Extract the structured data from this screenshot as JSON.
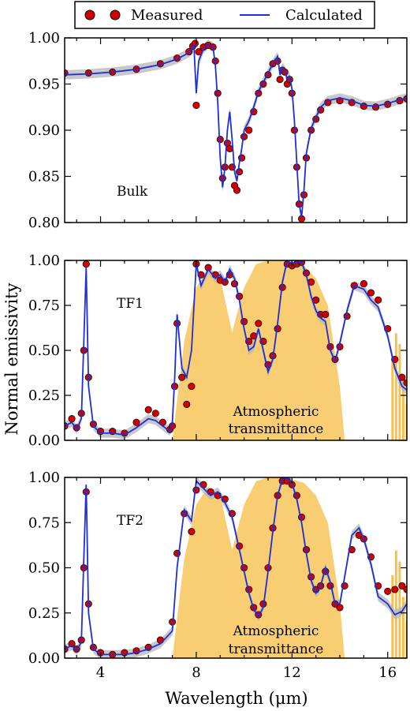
{
  "colors": {
    "measured": "#d40000",
    "calculated": "#1f2fd6",
    "uncertainty": "#b5b5b5",
    "atmosphere": "#f7c04f"
  },
  "legend": {
    "measured": "Measured",
    "calculated": "Calculated"
  },
  "ylabel": "Normal emissivity",
  "xlabel": "Wavelength (μm)",
  "x_ticks": [
    "4",
    "8",
    "12",
    "16"
  ],
  "chart_data": [
    {
      "type": "line",
      "panel": "Bulk",
      "xlim": [
        2.5,
        16.8
      ],
      "ylim": [
        0.8,
        1.0
      ],
      "yticks": [
        "1.00",
        "0.95",
        "0.90",
        "0.85",
        "0.80"
      ],
      "annotation": "",
      "series": [
        {
          "name": "Measured",
          "style": "markers",
          "x": [
            2.5,
            3.5,
            4.5,
            5.5,
            6.5,
            7.2,
            7.7,
            7.85,
            7.95,
            8.0,
            8.1,
            8.3,
            8.5,
            8.7,
            8.8,
            8.9,
            9.0,
            9.1,
            9.2,
            9.3,
            9.4,
            9.5,
            9.6,
            9.7,
            9.8,
            9.9,
            10.0,
            10.2,
            10.4,
            10.6,
            10.8,
            11.0,
            11.2,
            11.4,
            11.5,
            11.6,
            11.7,
            11.8,
            11.9,
            12.0,
            12.1,
            12.2,
            12.3,
            12.4,
            12.5,
            12.6,
            12.8,
            13.0,
            13.2,
            13.5,
            14.0,
            14.5,
            15.0,
            15.5,
            16.0,
            16.5,
            16.8
          ],
          "y": [
            0.962,
            0.962,
            0.963,
            0.966,
            0.972,
            0.978,
            0.985,
            0.991,
            0.994,
            0.927,
            0.985,
            0.99,
            0.992,
            0.99,
            0.975,
            0.94,
            0.89,
            0.848,
            0.86,
            0.886,
            0.88,
            0.86,
            0.84,
            0.835,
            0.855,
            0.87,
            0.893,
            0.9,
            0.92,
            0.94,
            0.95,
            0.96,
            0.972,
            0.975,
            0.955,
            0.965,
            0.963,
            0.95,
            0.955,
            0.94,
            0.9,
            0.86,
            0.82,
            0.804,
            0.83,
            0.87,
            0.9,
            0.912,
            0.922,
            0.93,
            0.932,
            0.93,
            0.926,
            0.925,
            0.928,
            0.932,
            0.934
          ]
        },
        {
          "name": "Calculated",
          "style": "line",
          "x": [
            2.5,
            3.5,
            4.5,
            5.5,
            6.5,
            7.2,
            7.7,
            7.9,
            8.0,
            8.1,
            8.3,
            8.5,
            8.7,
            8.8,
            8.9,
            9.0,
            9.1,
            9.2,
            9.3,
            9.4,
            9.5,
            9.6,
            9.7,
            9.8,
            9.9,
            10.0,
            10.2,
            10.4,
            10.6,
            10.8,
            11.0,
            11.2,
            11.4,
            11.5,
            11.6,
            11.7,
            11.8,
            11.9,
            12.0,
            12.1,
            12.2,
            12.3,
            12.4,
            12.5,
            12.6,
            12.8,
            13.0,
            13.2,
            13.5,
            14.0,
            14.5,
            15.0,
            15.5,
            16.0,
            16.5,
            16.8
          ],
          "y": [
            0.96,
            0.961,
            0.963,
            0.966,
            0.971,
            0.977,
            0.984,
            0.992,
            0.94,
            0.975,
            0.988,
            0.993,
            0.99,
            0.97,
            0.93,
            0.87,
            0.838,
            0.86,
            0.9,
            0.92,
            0.89,
            0.855,
            0.845,
            0.865,
            0.88,
            0.9,
            0.91,
            0.925,
            0.942,
            0.952,
            0.962,
            0.972,
            0.98,
            0.96,
            0.968,
            0.965,
            0.955,
            0.958,
            0.945,
            0.91,
            0.865,
            0.82,
            0.806,
            0.835,
            0.875,
            0.902,
            0.914,
            0.925,
            0.932,
            0.935,
            0.932,
            0.927,
            0.926,
            0.929,
            0.933,
            0.935
          ]
        }
      ]
    },
    {
      "type": "line",
      "panel": "TF1",
      "xlim": [
        2.5,
        16.8
      ],
      "ylim": [
        0.0,
        1.0
      ],
      "yticks": [
        "1.00",
        "0.75",
        "0.50",
        "0.25",
        "0.00"
      ],
      "annotation": "Atmospheric transmittance",
      "annotation_lines": [
        "Atmospheric",
        "transmittance"
      ],
      "atmosphere_band": {
        "x": [
          7.0,
          7.5,
          8.0,
          8.5,
          9.0,
          9.5,
          10.0,
          10.5,
          11.0,
          11.5,
          12.0,
          12.5,
          13.0,
          13.5,
          14.0,
          14.2
        ],
        "y": [
          0.0,
          0.55,
          0.85,
          0.95,
          0.9,
          0.6,
          0.85,
          0.98,
          1.0,
          1.0,
          0.99,
          0.97,
          0.9,
          0.75,
          0.3,
          0.0
        ]
      },
      "series": [
        {
          "name": "Measured",
          "style": "markers",
          "x": [
            2.5,
            2.8,
            3.0,
            3.2,
            3.3,
            3.4,
            3.5,
            3.7,
            4.0,
            4.5,
            5.0,
            5.5,
            6.0,
            6.3,
            6.6,
            6.9,
            7.0,
            7.1,
            7.2,
            7.4,
            7.6,
            7.8,
            8.0,
            8.2,
            8.5,
            8.8,
            9.0,
            9.2,
            9.4,
            9.6,
            9.8,
            10.0,
            10.2,
            10.4,
            10.6,
            10.8,
            11.0,
            11.2,
            11.4,
            11.6,
            11.8,
            12.0,
            12.2,
            12.4,
            12.6,
            12.8,
            13.0,
            13.2,
            13.4,
            13.6,
            13.8,
            14.0,
            14.3,
            14.6,
            15.0,
            15.3,
            15.6,
            16.0,
            16.3,
            16.6,
            16.8
          ],
          "y": [
            0.08,
            0.12,
            0.07,
            0.15,
            0.5,
            0.98,
            0.35,
            0.09,
            0.05,
            0.05,
            0.04,
            0.1,
            0.17,
            0.15,
            0.1,
            0.06,
            0.08,
            0.3,
            0.65,
            0.35,
            0.2,
            0.3,
            0.98,
            0.92,
            0.96,
            0.92,
            0.89,
            0.88,
            0.92,
            0.87,
            0.8,
            0.66,
            0.55,
            0.58,
            0.65,
            0.55,
            0.42,
            0.47,
            0.62,
            0.85,
            0.98,
            0.97,
            0.98,
            0.99,
            0.93,
            0.88,
            0.78,
            0.7,
            0.7,
            0.52,
            0.45,
            0.52,
            0.69,
            0.86,
            0.87,
            0.82,
            0.78,
            0.62,
            0.45,
            0.35,
            0.32
          ]
        },
        {
          "name": "Calculated",
          "style": "line",
          "x": [
            2.5,
            2.8,
            3.0,
            3.2,
            3.3,
            3.4,
            3.5,
            3.7,
            4.0,
            4.5,
            5.0,
            5.5,
            6.0,
            6.3,
            6.6,
            6.9,
            7.0,
            7.1,
            7.2,
            7.4,
            7.6,
            7.8,
            8.0,
            8.2,
            8.5,
            8.8,
            9.0,
            9.2,
            9.4,
            9.6,
            9.8,
            10.0,
            10.2,
            10.4,
            10.6,
            10.8,
            11.0,
            11.2,
            11.4,
            11.6,
            11.8,
            12.0,
            12.2,
            12.4,
            12.6,
            12.8,
            13.0,
            13.2,
            13.4,
            13.6,
            13.8,
            14.0,
            14.3,
            14.6,
            15.0,
            15.3,
            15.6,
            16.0,
            16.3,
            16.6,
            16.8
          ],
          "y": [
            0.08,
            0.1,
            0.06,
            0.12,
            0.55,
            0.96,
            0.3,
            0.08,
            0.04,
            0.04,
            0.03,
            0.07,
            0.12,
            0.11,
            0.08,
            0.05,
            0.1,
            0.35,
            0.7,
            0.4,
            0.35,
            0.5,
            0.98,
            0.86,
            0.95,
            0.9,
            0.92,
            0.88,
            0.95,
            0.9,
            0.78,
            0.62,
            0.5,
            0.52,
            0.62,
            0.5,
            0.38,
            0.45,
            0.65,
            0.88,
            1.0,
            0.98,
            0.99,
            0.99,
            0.92,
            0.8,
            0.72,
            0.68,
            0.66,
            0.5,
            0.44,
            0.54,
            0.72,
            0.86,
            0.84,
            0.78,
            0.74,
            0.58,
            0.4,
            0.3,
            0.28
          ]
        }
      ]
    },
    {
      "type": "line",
      "panel": "TF2",
      "xlim": [
        2.5,
        16.8
      ],
      "ylim": [
        0.0,
        1.0
      ],
      "yticks": [
        "1.00",
        "0.75",
        "0.50",
        "0.25",
        "0.00"
      ],
      "annotation": "Atmospheric transmittance",
      "annotation_lines": [
        "Atmospheric",
        "transmittance"
      ],
      "atmosphere_band": {
        "x": [
          7.0,
          7.5,
          8.0,
          8.5,
          9.0,
          9.5,
          10.0,
          10.5,
          11.0,
          11.5,
          12.0,
          12.5,
          13.0,
          13.5,
          14.0,
          14.2
        ],
        "y": [
          0.0,
          0.55,
          0.85,
          0.95,
          0.9,
          0.6,
          0.85,
          0.98,
          1.0,
          1.0,
          0.99,
          0.97,
          0.9,
          0.75,
          0.3,
          0.0
        ]
      },
      "series": [
        {
          "name": "Measured",
          "style": "markers",
          "x": [
            2.5,
            2.8,
            3.0,
            3.2,
            3.3,
            3.4,
            3.5,
            3.7,
            4.0,
            4.5,
            5.0,
            5.5,
            6.0,
            6.5,
            7.0,
            7.2,
            7.5,
            7.8,
            8.0,
            8.3,
            8.6,
            8.9,
            9.2,
            9.5,
            9.8,
            10.0,
            10.2,
            10.4,
            10.6,
            10.8,
            11.0,
            11.2,
            11.4,
            11.6,
            11.8,
            12.0,
            12.2,
            12.4,
            12.6,
            12.8,
            13.0,
            13.2,
            13.4,
            13.6,
            13.8,
            14.0,
            14.2,
            14.5,
            14.8,
            15.0,
            15.3,
            15.6,
            16.0,
            16.3,
            16.6,
            16.8
          ],
          "y": [
            0.05,
            0.08,
            0.05,
            0.1,
            0.5,
            0.92,
            0.3,
            0.06,
            0.03,
            0.02,
            0.03,
            0.04,
            0.06,
            0.1,
            0.2,
            0.58,
            0.8,
            0.7,
            0.93,
            0.96,
            0.92,
            0.9,
            0.88,
            0.8,
            0.62,
            0.5,
            0.38,
            0.28,
            0.24,
            0.3,
            0.5,
            0.72,
            0.9,
            0.98,
            0.98,
            0.96,
            0.9,
            0.78,
            0.6,
            0.45,
            0.38,
            0.4,
            0.48,
            0.4,
            0.3,
            0.28,
            0.4,
            0.6,
            0.68,
            0.66,
            0.56,
            0.4,
            0.37,
            0.38,
            0.4,
            0.38
          ]
        },
        {
          "name": "Calculated",
          "style": "line",
          "x": [
            2.5,
            2.8,
            3.0,
            3.2,
            3.3,
            3.4,
            3.5,
            3.7,
            4.0,
            4.5,
            5.0,
            5.5,
            6.0,
            6.5,
            7.0,
            7.2,
            7.5,
            7.8,
            8.0,
            8.3,
            8.6,
            8.9,
            9.2,
            9.5,
            9.8,
            10.0,
            10.2,
            10.4,
            10.6,
            10.8,
            11.0,
            11.2,
            11.4,
            11.6,
            11.8,
            12.0,
            12.2,
            12.4,
            12.6,
            12.8,
            13.0,
            13.2,
            13.4,
            13.6,
            13.8,
            14.0,
            14.2,
            14.5,
            14.8,
            15.0,
            15.3,
            15.6,
            16.0,
            16.3,
            16.6,
            16.8
          ],
          "y": [
            0.05,
            0.07,
            0.04,
            0.09,
            0.55,
            0.96,
            0.25,
            0.05,
            0.02,
            0.02,
            0.02,
            0.03,
            0.05,
            0.08,
            0.15,
            0.5,
            0.82,
            0.76,
            0.98,
            0.94,
            0.9,
            0.92,
            0.86,
            0.78,
            0.6,
            0.48,
            0.36,
            0.27,
            0.23,
            0.28,
            0.48,
            0.7,
            0.9,
            0.99,
            1.0,
            0.97,
            0.88,
            0.75,
            0.58,
            0.43,
            0.36,
            0.4,
            0.5,
            0.42,
            0.3,
            0.3,
            0.45,
            0.68,
            0.72,
            0.66,
            0.52,
            0.34,
            0.3,
            0.24,
            0.26,
            0.3
          ]
        }
      ]
    }
  ]
}
